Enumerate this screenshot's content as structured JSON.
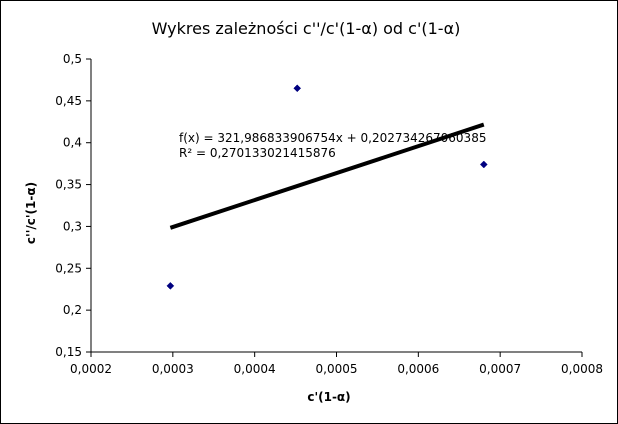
{
  "chart_data": {
    "type": "scatter",
    "title": "Wykres zależności c''/c'(1-α) od c'(1-α)",
    "xlabel": "c'(1-α)",
    "ylabel": "c''/c'(1-α)",
    "xlim": [
      0.0002,
      0.0008
    ],
    "ylim": [
      0.15,
      0.5
    ],
    "x_ticks": [
      0.0002,
      0.0003,
      0.0004,
      0.0005,
      0.0006,
      0.0007,
      0.0008
    ],
    "x_tick_labels": [
      "0,0002",
      "0,0003",
      "0,0004",
      "0,0005",
      "0,0006",
      "0,0007",
      "0,0008"
    ],
    "y_ticks": [
      0.15,
      0.2,
      0.25,
      0.3,
      0.35,
      0.4,
      0.45,
      0.5
    ],
    "y_tick_labels": [
      "0,15",
      "0,2",
      "0,25",
      "0,3",
      "0,35",
      "0,4",
      "0,45",
      "0,5"
    ],
    "grid": false,
    "series": [
      {
        "marker": "diamond",
        "color": "#000080",
        "points": [
          {
            "x": 0.000297,
            "y": 0.229
          },
          {
            "x": 0.000452,
            "y": 0.465
          },
          {
            "x": 0.00068,
            "y": 0.374
          }
        ]
      }
    ],
    "trendline": {
      "slope": 321.986833906754,
      "intercept": 0.202734267060385,
      "x_range": [
        0.000297,
        0.00068
      ],
      "color": "#000000"
    },
    "annotations": {
      "equation": "f(x) = 321,986833906754x + 0,202734267060385",
      "r_squared": "R² = 0,270133021415876"
    }
  }
}
